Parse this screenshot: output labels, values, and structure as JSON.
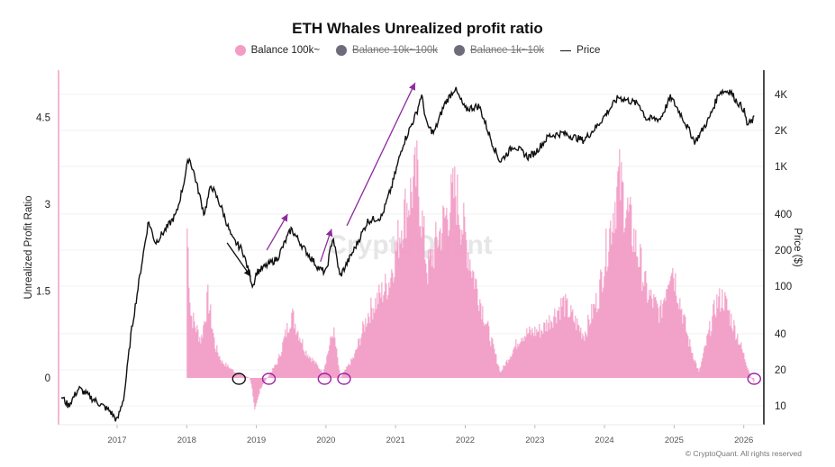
{
  "title": "ETH Whales Unrealized profit ratio",
  "legend": [
    {
      "label": "Balance 100k~",
      "color": "#f29cc6",
      "active": true
    },
    {
      "label": "Balance 10k~100k",
      "color": "#6f6b7a",
      "active": false
    },
    {
      "label": "Balance 1k~10k",
      "color": "#6f6b7a",
      "active": false
    },
    {
      "label": "Price",
      "color": "#111111",
      "active": true
    }
  ],
  "footer": "© CryptoQuant. All rights reserved",
  "watermark": "CryptoQuant",
  "chart_data": {
    "type": "bar+line",
    "title": "ETH Whales Unrealized profit ratio",
    "ylabel_left": "Unrealized Profit Ratio",
    "ylabel_right": "Price ($)",
    "left_ticks": [
      "0",
      "1.5",
      "3",
      "4.5"
    ],
    "left_tick_values": [
      0,
      1.5,
      3,
      4.5
    ],
    "right_ticks": [
      "10",
      "20",
      "40",
      "100",
      "200",
      "400",
      "1K",
      "2K",
      "4K"
    ],
    "right_tick_values": [
      10,
      20,
      40,
      100,
      200,
      400,
      1000,
      2000,
      4000
    ],
    "right_scale": "log",
    "x_ticks": [
      "2017",
      "2018",
      "2019",
      "2020",
      "2021",
      "2022",
      "2023",
      "2024",
      "2025",
      "2026"
    ],
    "xlim": [
      2016.15,
      2026.3
    ],
    "ylim_left": [
      -0.8,
      5.1
    ],
    "ylim_right": [
      6,
      5600
    ],
    "legend_placement": "top",
    "series": [
      {
        "name": "Balance 100k~",
        "type": "bar",
        "color": "#f29cc6",
        "points": [
          [
            2018.0,
            2.8
          ],
          [
            2018.05,
            1.2
          ],
          [
            2018.2,
            0.7
          ],
          [
            2018.3,
            1.5
          ],
          [
            2018.4,
            0.6
          ],
          [
            2018.5,
            0.3
          ],
          [
            2018.7,
            0.1
          ],
          [
            2018.9,
            0.0
          ],
          [
            2018.97,
            -0.5
          ],
          [
            2019.1,
            -0.1
          ],
          [
            2019.3,
            0.3
          ],
          [
            2019.5,
            1.2
          ],
          [
            2019.7,
            0.5
          ],
          [
            2019.95,
            0.1
          ],
          [
            2020.1,
            0.9
          ],
          [
            2020.2,
            0.0
          ],
          [
            2020.4,
            0.4
          ],
          [
            2020.6,
            1.2
          ],
          [
            2020.9,
            1.8
          ],
          [
            2021.1,
            3.0
          ],
          [
            2021.3,
            3.8
          ],
          [
            2021.45,
            2.0
          ],
          [
            2021.6,
            2.6
          ],
          [
            2021.85,
            3.5
          ],
          [
            2022.1,
            2.0
          ],
          [
            2022.3,
            1.0
          ],
          [
            2022.5,
            0.1
          ],
          [
            2022.8,
            0.8
          ],
          [
            2023.1,
            0.9
          ],
          [
            2023.4,
            1.4
          ],
          [
            2023.7,
            0.8
          ],
          [
            2023.9,
            1.5
          ],
          [
            2024.2,
            3.7
          ],
          [
            2024.5,
            2.2
          ],
          [
            2024.6,
            1.6
          ],
          [
            2024.8,
            1.2
          ],
          [
            2024.95,
            2.2
          ],
          [
            2025.2,
            0.7
          ],
          [
            2025.35,
            0.1
          ],
          [
            2025.6,
            1.4
          ],
          [
            2025.7,
            1.5
          ],
          [
            2025.9,
            0.8
          ],
          [
            2026.0,
            0.4
          ],
          [
            2026.1,
            0.0
          ],
          [
            2026.15,
            -0.1
          ]
        ]
      },
      {
        "name": "Price",
        "type": "line",
        "color": "#111111",
        "points": [
          [
            2016.2,
            12
          ],
          [
            2016.3,
            10
          ],
          [
            2016.45,
            14
          ],
          [
            2016.6,
            12
          ],
          [
            2016.9,
            9
          ],
          [
            2017.0,
            7.5
          ],
          [
            2017.1,
            12
          ],
          [
            2017.2,
            40
          ],
          [
            2017.35,
            150
          ],
          [
            2017.45,
            350
          ],
          [
            2017.55,
            230
          ],
          [
            2017.7,
            300
          ],
          [
            2017.85,
            400
          ],
          [
            2017.95,
            700
          ],
          [
            2018.03,
            1200
          ],
          [
            2018.1,
            900
          ],
          [
            2018.25,
            400
          ],
          [
            2018.35,
            700
          ],
          [
            2018.5,
            450
          ],
          [
            2018.65,
            250
          ],
          [
            2018.8,
            200
          ],
          [
            2018.95,
            100
          ],
          [
            2019.0,
            130
          ],
          [
            2019.3,
            170
          ],
          [
            2019.5,
            300
          ],
          [
            2019.7,
            200
          ],
          [
            2019.9,
            140
          ],
          [
            2020.0,
            130
          ],
          [
            2020.1,
            260
          ],
          [
            2020.2,
            120
          ],
          [
            2020.4,
            200
          ],
          [
            2020.6,
            350
          ],
          [
            2020.8,
            380
          ],
          [
            2020.95,
            700
          ],
          [
            2021.1,
            1500
          ],
          [
            2021.3,
            2800
          ],
          [
            2021.37,
            4000
          ],
          [
            2021.45,
            2200
          ],
          [
            2021.55,
            1900
          ],
          [
            2021.7,
            3300
          ],
          [
            2021.85,
            4500
          ],
          [
            2022.0,
            3000
          ],
          [
            2022.2,
            3200
          ],
          [
            2022.4,
            1500
          ],
          [
            2022.5,
            1100
          ],
          [
            2022.7,
            1500
          ],
          [
            2022.9,
            1200
          ],
          [
            2023.0,
            1300
          ],
          [
            2023.2,
            1800
          ],
          [
            2023.4,
            1900
          ],
          [
            2023.7,
            1650
          ],
          [
            2023.9,
            2200
          ],
          [
            2024.2,
            3800
          ],
          [
            2024.5,
            3300
          ],
          [
            2024.6,
            2500
          ],
          [
            2024.8,
            2500
          ],
          [
            2024.95,
            3800
          ],
          [
            2025.1,
            2700
          ],
          [
            2025.3,
            1600
          ],
          [
            2025.5,
            2500
          ],
          [
            2025.65,
            4200
          ],
          [
            2025.8,
            4300
          ],
          [
            2025.9,
            3500
          ],
          [
            2026.0,
            3000
          ],
          [
            2026.05,
            2200
          ],
          [
            2026.15,
            2500
          ]
        ]
      }
    ],
    "annotations": {
      "circles": [
        {
          "x": 2018.75,
          "color": "#111111"
        },
        {
          "x": 2019.18,
          "color": "#9b1fa8"
        },
        {
          "x": 2019.98,
          "color": "#9b1fa8"
        },
        {
          "x": 2020.26,
          "color": "#9b1fa8"
        },
        {
          "x": 2026.15,
          "color": "#9b1fa8"
        }
      ],
      "arrows": [
        {
          "from": [
            2018.58,
            230
          ],
          "to": [
            2018.92,
            120
          ],
          "color": "#111111"
        },
        {
          "from": [
            2019.15,
            200
          ],
          "to": [
            2019.45,
            400
          ],
          "color": "#8e2a9e"
        },
        {
          "from": [
            2019.92,
            160
          ],
          "to": [
            2020.08,
            300
          ],
          "color": "#8e2a9e"
        },
        {
          "from": [
            2020.3,
            320
          ],
          "to": [
            2021.28,
            5000
          ],
          "color": "#8e2a9e"
        }
      ]
    }
  }
}
